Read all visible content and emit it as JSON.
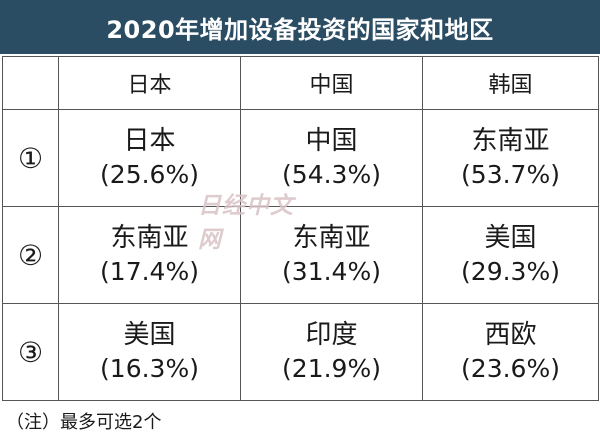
{
  "title": "2020年增加设备投资的国家和地区",
  "header": {
    "corner": "",
    "columns": [
      "日本",
      "中国",
      "韩国"
    ]
  },
  "rows": [
    {
      "rank": "①",
      "cells": [
        {
          "country": "日本",
          "pct": "(25.6%)"
        },
        {
          "country": "中国",
          "pct": "(54.3%)"
        },
        {
          "country": "东南亚",
          "pct": "(53.7%)"
        }
      ]
    },
    {
      "rank": "②",
      "cells": [
        {
          "country": "东南亚",
          "pct": "(17.4%)"
        },
        {
          "country": "东南亚",
          "pct": "(31.4%)"
        },
        {
          "country": "美国",
          "pct": "(29.3%)"
        }
      ]
    },
    {
      "rank": "③",
      "cells": [
        {
          "country": "美国",
          "pct": "(16.3%)"
        },
        {
          "country": "印度",
          "pct": "(21.9%)"
        },
        {
          "country": "西欧",
          "pct": "(23.6%)"
        }
      ]
    }
  ],
  "watermark": "日经中文网",
  "note": "（注）最多可选2个"
}
